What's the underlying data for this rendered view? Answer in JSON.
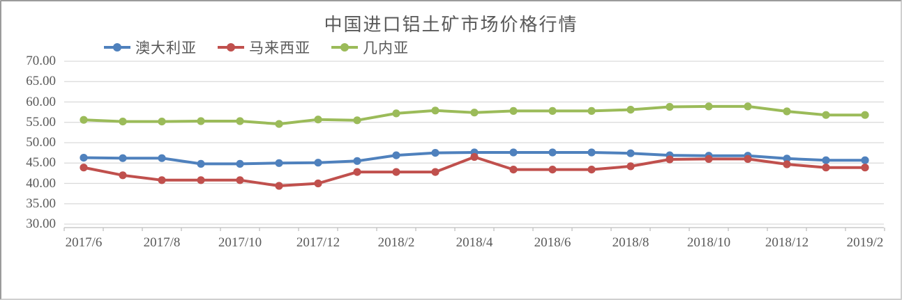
{
  "window": {
    "background": "#ffffff",
    "border_color": "#9b9b9b"
  },
  "chart_data": {
    "type": "line",
    "title": "中国进口铝土矿市场价格行情",
    "xlabel": "",
    "ylabel": "",
    "ylim": [
      30,
      70
    ],
    "y_step": 5,
    "grid": "horizontal",
    "legend_position": "top-left",
    "gridline_color": "#d9d9d9",
    "axis_color": "#bfbfbf",
    "text_color": "#595959",
    "categories": [
      "2017/6",
      "2017/7",
      "2017/8",
      "2017/9",
      "2017/10",
      "2017/11",
      "2017/12",
      "2018/1",
      "2018/2",
      "2018/3",
      "2018/4",
      "2018/5",
      "2018/6",
      "2018/7",
      "2018/8",
      "2018/9",
      "2018/10",
      "2018/11",
      "2018/12",
      "2019/1",
      "2019/2"
    ],
    "x_tick_labels": [
      "2017/6",
      "2017/8",
      "2017/10",
      "2017/12",
      "2018/2",
      "2018/4",
      "2018/6",
      "2018/8",
      "2018/10",
      "2018/12",
      "2019/2"
    ],
    "y_tick_labels": [
      "70.00",
      "65.00",
      "60.00",
      "55.00",
      "50.00",
      "45.00",
      "40.00",
      "35.00",
      "30.00"
    ],
    "series": [
      {
        "id": "australia",
        "name": "澳大利亚",
        "color": "#4F81BD",
        "values": [
          46.3,
          46.2,
          46.2,
          44.8,
          44.8,
          45.0,
          45.1,
          45.5,
          46.9,
          47.5,
          47.6,
          47.6,
          47.6,
          47.6,
          47.4,
          46.9,
          46.8,
          46.8,
          46.1,
          45.7,
          45.7
        ]
      },
      {
        "id": "malaysia",
        "name": "马来西亚",
        "color": "#C0504D",
        "values": [
          43.9,
          42.0,
          40.8,
          40.8,
          40.8,
          39.4,
          40.0,
          42.8,
          42.8,
          42.8,
          46.5,
          43.4,
          43.4,
          43.4,
          44.2,
          45.9,
          46.0,
          46.0,
          44.7,
          43.9,
          43.9
        ]
      },
      {
        "id": "guinea",
        "name": "几内亚",
        "color": "#9BBB59",
        "values": [
          55.6,
          55.2,
          55.2,
          55.3,
          55.3,
          54.6,
          55.7,
          55.5,
          57.2,
          57.9,
          57.4,
          57.8,
          57.8,
          57.8,
          58.1,
          58.8,
          58.9,
          58.9,
          57.7,
          56.8,
          56.8
        ]
      }
    ]
  }
}
